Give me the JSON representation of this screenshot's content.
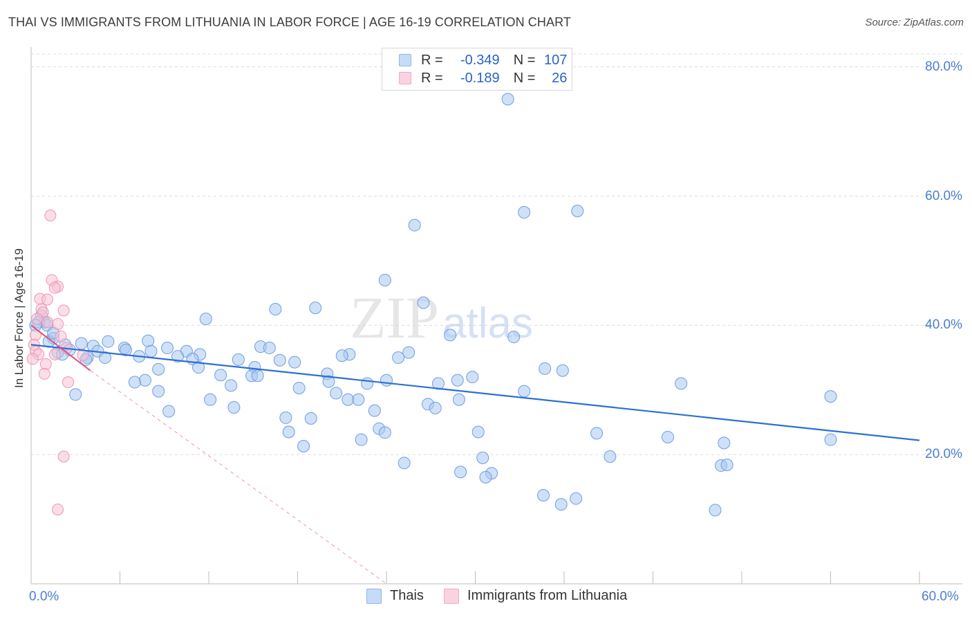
{
  "header": {
    "title": "THAI VS IMMIGRANTS FROM LITHUANIA IN LABOR FORCE | AGE 16-19 CORRELATION CHART",
    "source": "Source: ZipAtlas.com"
  },
  "watermark": {
    "zip": "ZIP",
    "atlas": "atlas"
  },
  "legend": {
    "rows": [
      {
        "r_label": "R =",
        "r_value": "-0.349",
        "n_label": "N =",
        "n_value": "107",
        "color": "#8fb6ec"
      },
      {
        "r_label": "R =",
        "r_value": "-0.189",
        "n_label": "N =",
        "n_value": "26",
        "color": "#f2a9c0"
      }
    ]
  },
  "bottom_legend": {
    "thais": "Thais",
    "lithuania": "Immigrants from Lithuania"
  },
  "colors": {
    "thais_fill": "#a9c8f0",
    "thais_stroke": "#6d9de0",
    "thais_line": "#2a6fd6",
    "lith_fill": "#f7c3d3",
    "lith_stroke": "#ef93b2",
    "lith_line": "#e0507e",
    "grid": "#dcdcdc",
    "tick_text": "#4a7fcf"
  },
  "chart_data": {
    "type": "scatter",
    "title": "THAI VS IMMIGRANTS FROM LITHUANIA IN LABOR FORCE | AGE 16-19 CORRELATION CHART",
    "xlabel": "",
    "ylabel": "In Labor Force | Age 16-19",
    "xlim": [
      0,
      63
    ],
    "ylim": [
      0,
      82
    ],
    "x_tick_labels": [
      "0.0%",
      "60.0%"
    ],
    "y_ticks": [
      20,
      40,
      60,
      80
    ],
    "y_tick_labels": [
      "20.0%",
      "40.0%",
      "60.0%",
      "80.0%"
    ],
    "grid": true,
    "legend_position": "top-center",
    "series": [
      {
        "name": "Thais",
        "points": [
          [
            32.2,
            75.0
          ],
          [
            33.3,
            57.5
          ],
          [
            36.9,
            57.7
          ],
          [
            25.9,
            55.5
          ],
          [
            23.9,
            47.0
          ],
          [
            16.5,
            42.5
          ],
          [
            19.2,
            42.7
          ],
          [
            26.5,
            43.5
          ],
          [
            11.8,
            41.0
          ],
          [
            28.3,
            38.5
          ],
          [
            32.6,
            38.2
          ],
          [
            0.7,
            41.5
          ],
          [
            0.9,
            40.5
          ],
          [
            1.1,
            40.0
          ],
          [
            0.5,
            40.5
          ],
          [
            1.5,
            38.0
          ],
          [
            1.2,
            37.5
          ],
          [
            2.3,
            37.0
          ],
          [
            3.4,
            37.2
          ],
          [
            5.2,
            37.5
          ],
          [
            7.9,
            37.6
          ],
          [
            4.2,
            36.8
          ],
          [
            6.3,
            36.5
          ],
          [
            9.2,
            36.5
          ],
          [
            2.6,
            36.2
          ],
          [
            15.5,
            36.7
          ],
          [
            16.1,
            36.5
          ],
          [
            4.5,
            36.0
          ],
          [
            1.8,
            35.8
          ],
          [
            8.1,
            36.0
          ],
          [
            6.4,
            36.2
          ],
          [
            10.5,
            36.0
          ],
          [
            11.4,
            35.5
          ],
          [
            21.5,
            35.5
          ],
          [
            25.5,
            35.8
          ],
          [
            2.1,
            35.5
          ],
          [
            3.8,
            35.0
          ],
          [
            5.0,
            35.0
          ],
          [
            7.3,
            35.2
          ],
          [
            9.9,
            35.2
          ],
          [
            10.9,
            34.8
          ],
          [
            21.0,
            35.3
          ],
          [
            24.8,
            35.0
          ],
          [
            14.0,
            34.7
          ],
          [
            16.8,
            34.6
          ],
          [
            17.8,
            34.3
          ],
          [
            3.7,
            34.7
          ],
          [
            8.6,
            33.2
          ],
          [
            11.3,
            33.5
          ],
          [
            15.1,
            33.5
          ],
          [
            34.7,
            33.3
          ],
          [
            35.9,
            33.0
          ],
          [
            20.0,
            32.5
          ],
          [
            12.8,
            32.3
          ],
          [
            14.9,
            32.2
          ],
          [
            15.3,
            32.2
          ],
          [
            7.7,
            31.5
          ],
          [
            7.0,
            31.2
          ],
          [
            20.1,
            31.3
          ],
          [
            24.0,
            31.5
          ],
          [
            29.8,
            32.0
          ],
          [
            43.9,
            31.0
          ],
          [
            28.8,
            31.5
          ],
          [
            22.7,
            31.0
          ],
          [
            27.5,
            31.0
          ],
          [
            13.5,
            30.7
          ],
          [
            18.1,
            30.3
          ],
          [
            8.6,
            29.8
          ],
          [
            33.3,
            29.8
          ],
          [
            20.6,
            29.5
          ],
          [
            3.0,
            29.3
          ],
          [
            12.1,
            28.5
          ],
          [
            21.4,
            28.5
          ],
          [
            22.1,
            28.5
          ],
          [
            28.9,
            28.5
          ],
          [
            54.0,
            29.0
          ],
          [
            26.8,
            27.8
          ],
          [
            27.3,
            27.2
          ],
          [
            13.7,
            27.3
          ],
          [
            23.2,
            26.8
          ],
          [
            9.3,
            26.7
          ],
          [
            17.2,
            25.7
          ],
          [
            18.9,
            25.6
          ],
          [
            23.5,
            24.0
          ],
          [
            23.9,
            23.4
          ],
          [
            17.4,
            23.5
          ],
          [
            30.2,
            23.5
          ],
          [
            38.2,
            23.3
          ],
          [
            43.0,
            22.7
          ],
          [
            54.0,
            22.3
          ],
          [
            22.3,
            22.3
          ],
          [
            46.8,
            21.8
          ],
          [
            18.4,
            21.3
          ],
          [
            25.2,
            18.7
          ],
          [
            39.1,
            19.7
          ],
          [
            30.5,
            19.5
          ],
          [
            46.6,
            18.3
          ],
          [
            47.0,
            18.4
          ],
          [
            29.0,
            17.3
          ],
          [
            31.1,
            17.1
          ],
          [
            30.7,
            16.5
          ],
          [
            34.6,
            13.7
          ],
          [
            36.8,
            13.2
          ],
          [
            35.8,
            12.3
          ],
          [
            46.2,
            11.4
          ],
          [
            1.5,
            38.8
          ],
          [
            0.3,
            40.0
          ]
        ]
      },
      {
        "name": "Immigrants from Lithuania",
        "points": [
          [
            1.3,
            57.0
          ],
          [
            1.4,
            47.0
          ],
          [
            1.8,
            46.0
          ],
          [
            1.6,
            45.8
          ],
          [
            0.6,
            44.1
          ],
          [
            1.1,
            44.0
          ],
          [
            0.7,
            42.5
          ],
          [
            0.8,
            42.0
          ],
          [
            2.2,
            42.3
          ],
          [
            0.4,
            41.0
          ],
          [
            1.1,
            40.5
          ],
          [
            1.8,
            40.2
          ],
          [
            0.3,
            38.5
          ],
          [
            2.0,
            38.3
          ],
          [
            0.2,
            37.0
          ],
          [
            0.3,
            36.0
          ],
          [
            2.4,
            36.5
          ],
          [
            0.5,
            35.5
          ],
          [
            1.6,
            35.5
          ],
          [
            3.5,
            35.4
          ],
          [
            0.1,
            34.8
          ],
          [
            1.0,
            34.0
          ],
          [
            0.9,
            32.5
          ],
          [
            2.5,
            31.2
          ],
          [
            2.2,
            19.7
          ],
          [
            1.8,
            11.5
          ]
        ]
      }
    ],
    "trend_lines": [
      {
        "series": "Thais",
        "x": [
          0,
          60
        ],
        "y": [
          37.0,
          22.2
        ]
      },
      {
        "series": "Immigrants from Lithuania",
        "x": [
          0,
          4.0
        ],
        "y": [
          40.0,
          33.0
        ],
        "dashed_extension_to": [
          24.0,
          0.0
        ]
      }
    ]
  }
}
